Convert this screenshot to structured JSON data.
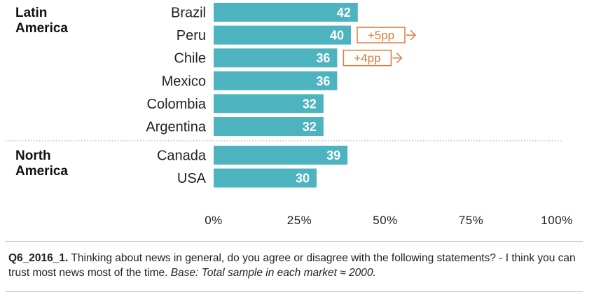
{
  "chart_data": {
    "type": "bar",
    "orientation": "horizontal",
    "xlim": [
      0,
      100
    ],
    "x_ticks": [
      "0%",
      "25%",
      "50%",
      "75%",
      "100%"
    ],
    "bar_color": "#4db3bf",
    "annotation_color": "#e07a3a",
    "groups": [
      {
        "name": "Latin\nAmerica",
        "items": [
          {
            "category": "Brazil",
            "value": 42,
            "label": "42"
          },
          {
            "category": "Peru",
            "value": 40,
            "label": "40",
            "annotation": "+5pp"
          },
          {
            "category": "Chile",
            "value": 36,
            "label": "36",
            "annotation": "+4pp"
          },
          {
            "category": "Mexico",
            "value": 36,
            "label": "36"
          },
          {
            "category": "Colombia",
            "value": 32,
            "label": "32"
          },
          {
            "category": "Argentina",
            "value": 32,
            "label": "32"
          }
        ]
      },
      {
        "name": "North\nAmerica",
        "items": [
          {
            "category": "Canada",
            "value": 39,
            "label": "39"
          },
          {
            "category": "USA",
            "value": 30,
            "label": "30"
          }
        ]
      }
    ]
  },
  "footnote": {
    "code": "Q6_2016_1.",
    "question": " Thinking about news in general, do you agree or disagree with the following statements? - I think you can trust most news most of the time. ",
    "base": "Base: Total sample in each market ≈ 2000."
  }
}
